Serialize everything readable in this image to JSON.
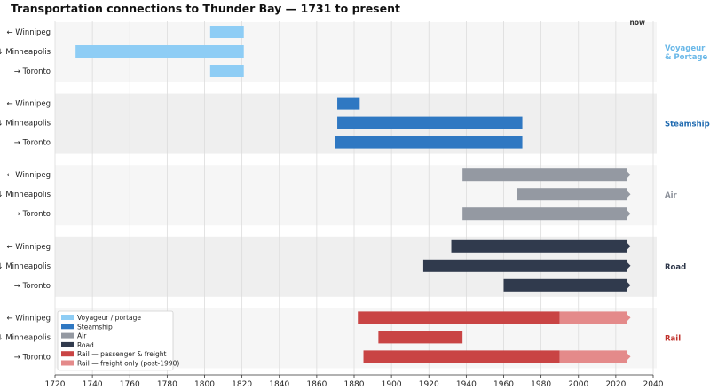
{
  "chart_data": {
    "type": "timeline",
    "title": "Transportation connections to Thunder Bay  —  1731 to present",
    "xlim": [
      1720,
      2040
    ],
    "xticks": [
      1720,
      1740,
      1760,
      1780,
      1800,
      1820,
      1840,
      1860,
      1880,
      1900,
      1920,
      1940,
      1960,
      1980,
      2000,
      2020,
      2040
    ],
    "now_year": 2026,
    "now_label": "now",
    "grid": "vertical",
    "legend_position": "lower-left",
    "legend": [
      {
        "label": "Voyageur / portage",
        "color": "#8ecdf5"
      },
      {
        "label": "Steamship",
        "color": "#2f78c2"
      },
      {
        "label": "Air",
        "color": "#9499a2"
      },
      {
        "label": "Road",
        "color": "#303a4d"
      },
      {
        "label": "Rail — passenger & freight",
        "color": "#c94444"
      },
      {
        "label": "Rail — freight only (post-1990)",
        "color": "#e48a8a"
      }
    ],
    "groups": [
      {
        "name": "Voyageur\n& Portage",
        "color": "#8ecdf5",
        "label_color": "#6ab8e8",
        "rows": [
          {
            "label": "← Winnipeg",
            "bars": [
              {
                "start": 1803,
                "end": 1821,
                "color": "#8ecdf5",
                "ongoing": false
              }
            ]
          },
          {
            "label": "↓ Minneapolis",
            "bars": [
              {
                "start": 1731,
                "end": 1821,
                "color": "#8ecdf5",
                "ongoing": false
              }
            ]
          },
          {
            "label": "→ Toronto",
            "bars": [
              {
                "start": 1803,
                "end": 1821,
                "color": "#8ecdf5",
                "ongoing": false
              }
            ]
          }
        ]
      },
      {
        "name": "Steamship",
        "color": "#2f78c2",
        "label_color": "#1f6ab0",
        "rows": [
          {
            "label": "← Winnipeg",
            "bars": [
              {
                "start": 1871,
                "end": 1883,
                "color": "#2f78c2",
                "ongoing": false
              }
            ]
          },
          {
            "label": "↓ Minneapolis",
            "bars": [
              {
                "start": 1871,
                "end": 1970,
                "color": "#2f78c2",
                "ongoing": false
              }
            ]
          },
          {
            "label": "→ Toronto",
            "bars": [
              {
                "start": 1870,
                "end": 1970,
                "color": "#2f78c2",
                "ongoing": false
              }
            ]
          }
        ]
      },
      {
        "name": "Air",
        "color": "#9499a2",
        "label_color": "#8a8f98",
        "rows": [
          {
            "label": "← Winnipeg",
            "bars": [
              {
                "start": 1938,
                "end": 2026,
                "color": "#9499a2",
                "ongoing": true
              }
            ]
          },
          {
            "label": "↓ Minneapolis",
            "bars": [
              {
                "start": 1967,
                "end": 2026,
                "color": "#9499a2",
                "ongoing": true
              }
            ]
          },
          {
            "label": "→ Toronto",
            "bars": [
              {
                "start": 1938,
                "end": 2026,
                "color": "#9499a2",
                "ongoing": true
              }
            ]
          }
        ]
      },
      {
        "name": "Road",
        "color": "#303a4d",
        "label_color": "#2d3648",
        "rows": [
          {
            "label": "← Winnipeg",
            "bars": [
              {
                "start": 1932,
                "end": 2026,
                "color": "#303a4d",
                "ongoing": true
              }
            ]
          },
          {
            "label": "↓ Minneapolis",
            "bars": [
              {
                "start": 1917,
                "end": 2026,
                "color": "#303a4d",
                "ongoing": true
              }
            ]
          },
          {
            "label": "→ Toronto",
            "bars": [
              {
                "start": 1960,
                "end": 2026,
                "color": "#303a4d",
                "ongoing": true
              }
            ]
          }
        ]
      },
      {
        "name": "Rail",
        "color": "#c94444",
        "label_color": "#c0302a",
        "rows": [
          {
            "label": "← Winnipeg",
            "bars": [
              {
                "start": 1882,
                "end": 1990,
                "color": "#c94444",
                "ongoing": false
              },
              {
                "start": 1990,
                "end": 2026,
                "color": "#e48a8a",
                "ongoing": true
              }
            ]
          },
          {
            "label": "↓ Minneapolis",
            "bars": [
              {
                "start": 1893,
                "end": 1938,
                "color": "#c94444",
                "ongoing": false
              }
            ]
          },
          {
            "label": "→ Toronto",
            "bars": [
              {
                "start": 1885,
                "end": 1990,
                "color": "#c94444",
                "ongoing": false
              },
              {
                "start": 1990,
                "end": 2026,
                "color": "#e48a8a",
                "ongoing": true
              }
            ]
          }
        ]
      }
    ]
  }
}
